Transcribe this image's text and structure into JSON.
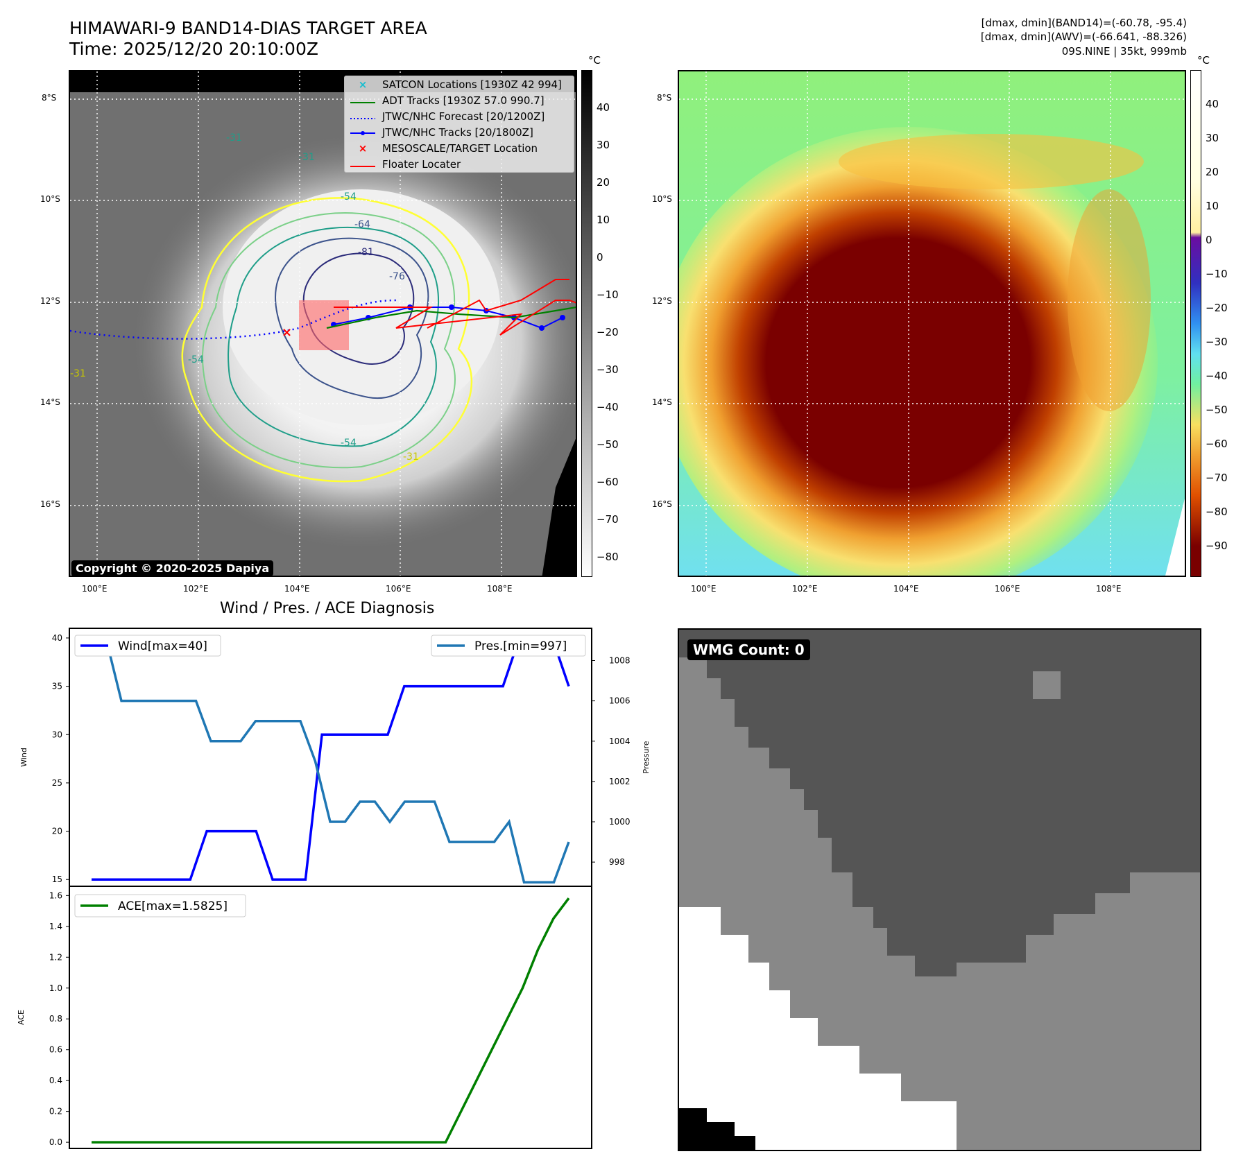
{
  "header": {
    "title_line1": "HIMAWARI-9 BAND14-DIAS TARGET AREA",
    "title_line2": "Time: 2025/12/20 20:10:00Z",
    "info_line1": "[dmax, dmin](BAND14)=(-60.78, -95.4)",
    "info_line2": "[dmax, dmin](AWV)=(-66.641, -88.326)",
    "info_line3": "09S.NINE | 35kt, 999mb"
  },
  "map_ir": {
    "legend": [
      {
        "symbol": "x",
        "color": "#17becf",
        "label": "SATCON Locations [1930Z 42 994]"
      },
      {
        "symbol": "line",
        "color": "#008000",
        "label": "ADT Tracks [1930Z 57.0 990.7]"
      },
      {
        "symbol": "dotted",
        "color": "#0000ff",
        "label": "JTWC/NHC Forecast [20/1200Z]"
      },
      {
        "symbol": "line-dot",
        "color": "#0000ff",
        "label": "JTWC/NHC Tracks [20/1800Z]"
      },
      {
        "symbol": "x",
        "color": "#ff0000",
        "label": "MESOSCALE/TARGET Location"
      },
      {
        "symbol": "line",
        "color": "#ff0000",
        "label": "Floater Locater"
      }
    ],
    "copyright": "Copyright © 2020-2025 Dapiya",
    "contour_labels": [
      "-31",
      "-31",
      "-54",
      "-64",
      "-81",
      "-76",
      "-54",
      "-31",
      "-31",
      "-54"
    ],
    "lat_ticks": [
      "8°S",
      "10°S",
      "12°S",
      "14°S",
      "16°S"
    ],
    "lon_ticks": [
      "100°E",
      "102°E",
      "104°E",
      "106°E",
      "108°E"
    ],
    "colorbar": {
      "unit": "°C",
      "ticks": [
        "40",
        "30",
        "20",
        "10",
        "0",
        "−10",
        "−20",
        "−30",
        "−40",
        "−50",
        "−60",
        "−70",
        "−80"
      ]
    }
  },
  "map_color": {
    "lat_ticks": [
      "8°S",
      "10°S",
      "12°S",
      "14°S",
      "16°S"
    ],
    "lon_ticks": [
      "100°E",
      "102°E",
      "104°E",
      "106°E",
      "108°E"
    ],
    "colorbar": {
      "unit": "°C",
      "ticks": [
        "40",
        "30",
        "20",
        "10",
        "0",
        "−10",
        "−20",
        "−30",
        "−40",
        "−50",
        "−60",
        "−70",
        "−80",
        "−90"
      ]
    }
  },
  "diagnosis_title": "Wind / Pres. / ACE Diagnosis",
  "wmg": {
    "badge": "WMG Count: 0"
  },
  "chart_data": [
    {
      "type": "line",
      "title": "Wind / Pres. / ACE Diagnosis",
      "ylabel": "Wind",
      "y2label": "Pressure",
      "ylim": [
        14.3,
        41
      ],
      "y2lim": [
        996.8,
        1009.6
      ],
      "yticks": [
        15,
        20,
        25,
        30,
        35,
        40
      ],
      "y2ticks": [
        998,
        1000,
        1002,
        1004,
        1006,
        1008
      ],
      "series": [
        {
          "name": "Wind[max=40]",
          "color": "#0000ff",
          "axis": "left",
          "values": [
            15,
            15,
            15,
            15,
            15,
            15,
            15,
            20,
            20,
            20,
            20,
            15,
            15,
            15,
            30,
            30,
            30,
            30,
            30,
            35,
            35,
            35,
            35,
            35,
            35,
            35,
            40,
            40,
            40,
            35
          ]
        },
        {
          "name": "Pres.[min=997]",
          "color": "#1f77b4",
          "axis": "right",
          "values": [
            1009,
            1009,
            1006,
            1006,
            1006,
            1006,
            1006,
            1006,
            1004,
            1004,
            1004,
            1005,
            1005,
            1005,
            1005,
            1003,
            1000,
            1000,
            1001,
            1001,
            1000,
            1001,
            1001,
            1001,
            999,
            999,
            999,
            999,
            1000,
            997,
            997,
            997,
            999
          ]
        }
      ]
    },
    {
      "type": "line",
      "ylabel": "ACE",
      "ylim": [
        -0.04,
        1.66
      ],
      "yticks": [
        0.0,
        0.2,
        0.4,
        0.6,
        0.8,
        1.0,
        1.2,
        1.4,
        1.6
      ],
      "series": [
        {
          "name": "ACE[max=1.5825]",
          "color": "#008000",
          "values": [
            0,
            0,
            0,
            0,
            0,
            0,
            0,
            0,
            0,
            0,
            0,
            0,
            0,
            0,
            0,
            0,
            0,
            0,
            0,
            0,
            0,
            0,
            0,
            0,
            0.2,
            0.4,
            0.6,
            0.8,
            1.0,
            1.25,
            1.45,
            1.5825
          ]
        }
      ]
    }
  ]
}
